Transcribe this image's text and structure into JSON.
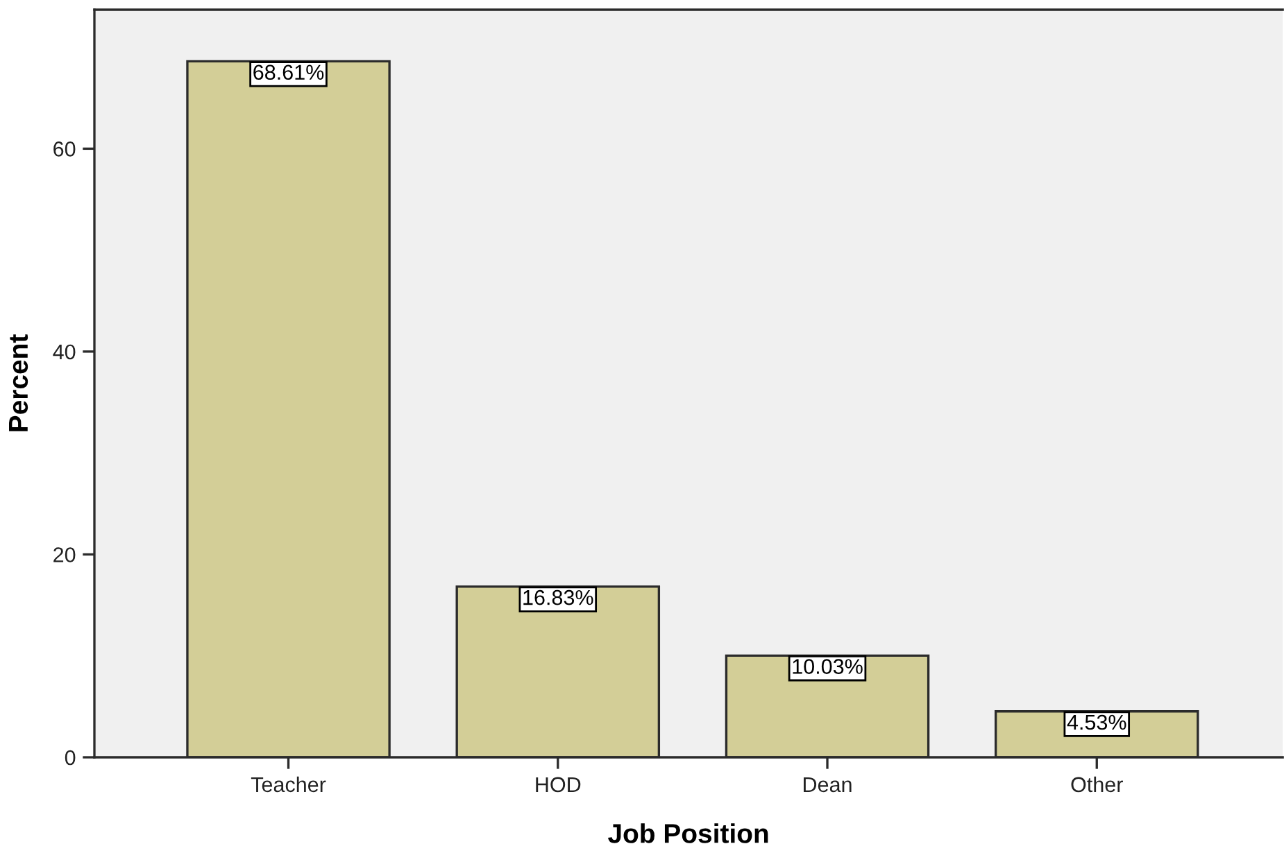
{
  "chart_data": {
    "type": "bar",
    "xlabel": "Job Position",
    "ylabel": "Percent",
    "categories": [
      "Teacher",
      "HOD",
      "Dean",
      "Other"
    ],
    "values": [
      68.61,
      16.83,
      10.03,
      4.53
    ],
    "value_labels": [
      "68.61%",
      "16.83%",
      "10.03%",
      "4.53%"
    ],
    "color": "#d3ce97",
    "ylim": [
      0,
      73.7
    ],
    "yticks": [
      0,
      20,
      40,
      60
    ],
    "grid": false,
    "legend": false
  }
}
